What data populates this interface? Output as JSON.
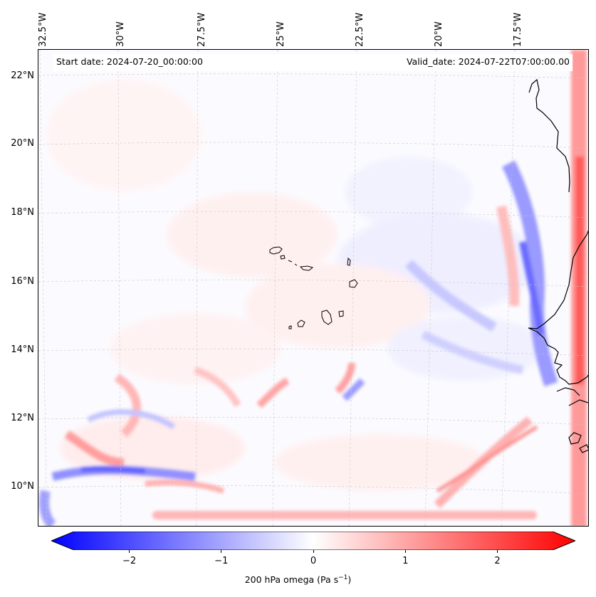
{
  "map": {
    "start_date": "Start date: 2024-07-20_00:00:00",
    "valid_date": "Valid_date: 2024-07-22T07:00:00.00",
    "field": "200 hPa omega",
    "longitude_labels": [
      "32.5°W",
      "30°W",
      "27.5°W",
      "25°W",
      "22.5°W",
      "20°W",
      "17.5°W"
    ],
    "latitude_labels": [
      "22°N",
      "20°N",
      "18°N",
      "16°N",
      "14°N",
      "12°N",
      "10°N"
    ],
    "features": [
      "Cape Verde islands",
      "West African coastline",
      "gridlines"
    ]
  },
  "colorbar": {
    "ticks": [
      "−2",
      "−1",
      "0",
      "1",
      "2"
    ],
    "tick_values": [
      -2,
      -1,
      0,
      1,
      2
    ],
    "range": [
      -2.6,
      2.6
    ],
    "label_prefix": "200 hPa omega (Pa s",
    "label_sup": "−1",
    "label_suffix": ")",
    "low_color": "#0000ff",
    "mid_color": "#ffffff",
    "high_color": "#ff0000"
  }
}
